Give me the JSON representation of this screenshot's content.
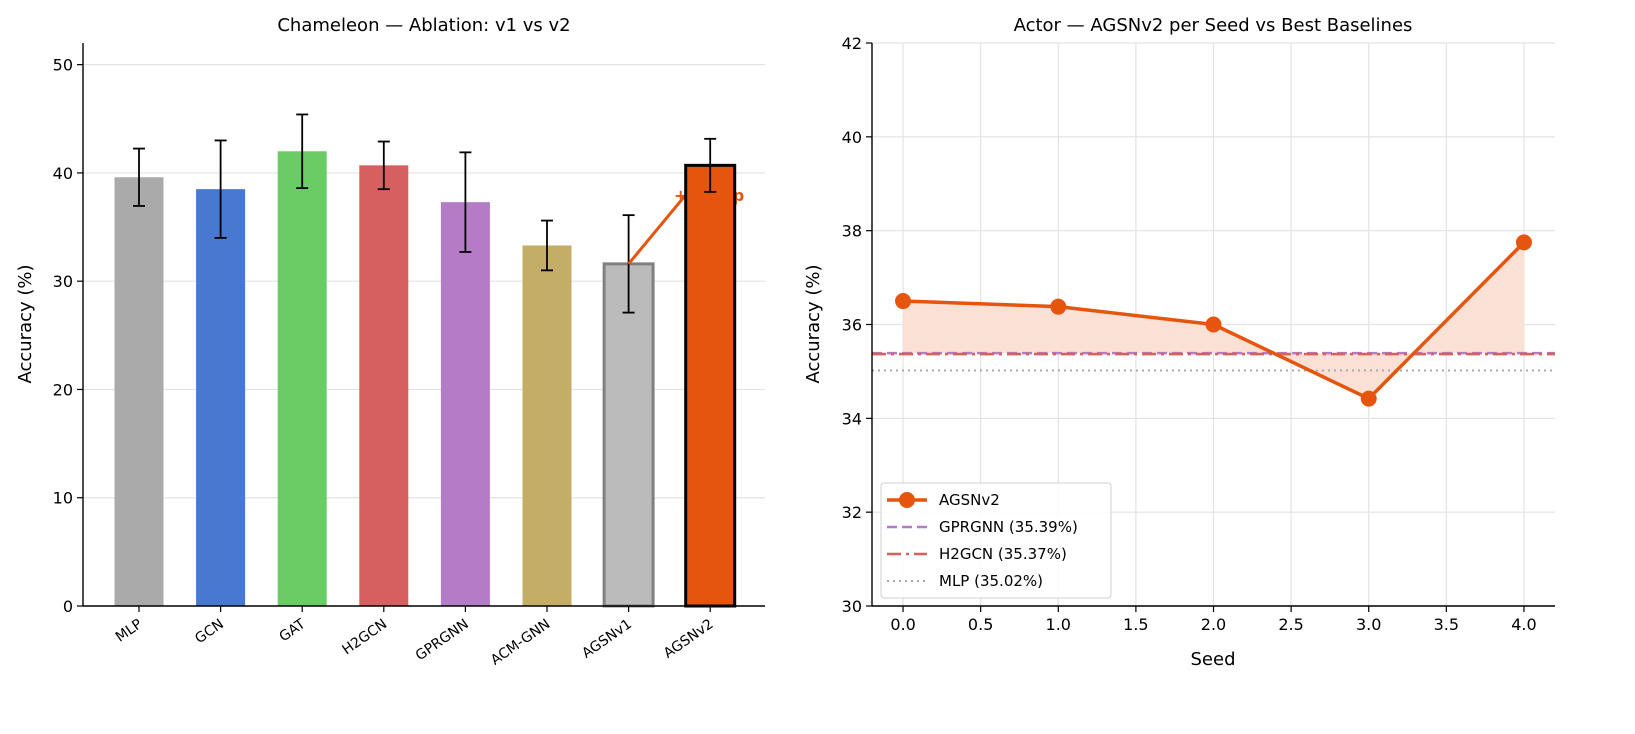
{
  "chart_data": [
    {
      "type": "bar",
      "title": "Chameleon — Ablation: v1 vs v2",
      "xlabel": "",
      "ylabel": "Accuracy (%)",
      "ylim": [
        0,
        52
      ],
      "yticks": [
        "0",
        "10",
        "20",
        "30",
        "40",
        "50"
      ],
      "grid": "y",
      "categories": [
        "MLP",
        "GCN",
        "GAT",
        "H2GCN",
        "GPRGNN",
        "ACM-GNN",
        "AGSNv1",
        "AGSNv2"
      ],
      "values": [
        39.6,
        38.5,
        42.0,
        40.7,
        37.3,
        33.3,
        31.6,
        40.7
      ],
      "errors": [
        2.65,
        4.5,
        3.4,
        2.2,
        4.6,
        2.3,
        4.5,
        2.45
      ],
      "colors": [
        "#aaaaaa",
        "#4878cf",
        "#6acc65",
        "#d65f5f",
        "#b47cc7",
        "#c4ad66",
        "#bbbbbb",
        "#e6550d"
      ],
      "edge_colors": [
        null,
        null,
        null,
        null,
        null,
        null,
        "#808080",
        "#000000"
      ],
      "annotation": {
        "text": "+9.1 pp",
        "from": "AGSNv1",
        "to": "AGSNv2",
        "color": "#e6550d"
      }
    },
    {
      "type": "line",
      "title": "Actor — AGSNv2 per Seed vs Best Baselines",
      "xlabel": "Seed",
      "ylabel": "Accuracy (%)",
      "xlim": [
        -0.2,
        4.2
      ],
      "ylim": [
        30,
        42
      ],
      "xticks": [
        "0.0",
        "0.5",
        "1.0",
        "1.5",
        "2.0",
        "2.5",
        "3.0",
        "3.5",
        "4.0"
      ],
      "yticks": [
        "30",
        "32",
        "34",
        "36",
        "38",
        "40",
        "42"
      ],
      "grid": true,
      "legend": "lower-left",
      "series": [
        {
          "name": "AGSNv2",
          "x": [
            0,
            1,
            2,
            3,
            4
          ],
          "y": [
            36.5,
            36.38,
            36.0,
            34.42,
            37.75
          ],
          "color": "#e6550d",
          "style": "solid-marker"
        }
      ],
      "baselines": [
        {
          "name": "GPRGNN (35.39%)",
          "value": 35.39,
          "color": "#b47cc7",
          "style": "dashed"
        },
        {
          "name": "H2GCN (35.37%)",
          "value": 35.37,
          "color": "#d65f5f",
          "style": "dashdot"
        },
        {
          "name": "MLP (35.02%)",
          "value": 35.02,
          "color": "#aaaaaa",
          "style": "dotted"
        }
      ],
      "fill_between": {
        "series": "AGSNv2",
        "baseline": 35.39,
        "color": "#fbe1d5"
      }
    }
  ]
}
